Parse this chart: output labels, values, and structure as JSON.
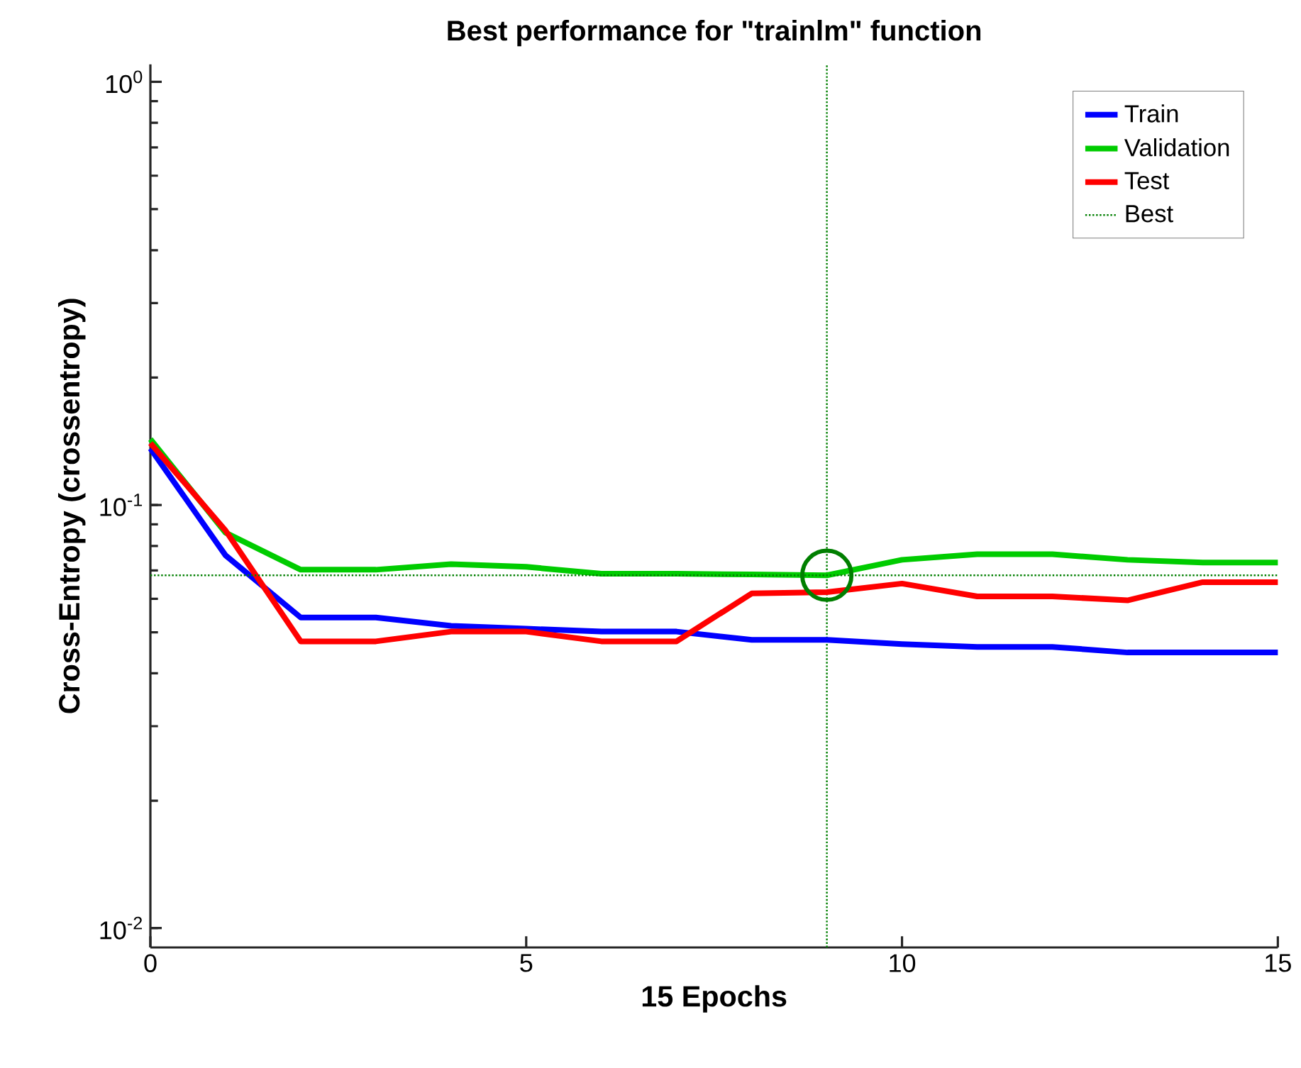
{
  "chart_data": {
    "type": "line",
    "title": "Best performance for \"trainlm\" function",
    "xlabel": "15 Epochs",
    "ylabel": "Cross-Entropy  (crossentropy)",
    "x": [
      0,
      1,
      2,
      3,
      4,
      5,
      6,
      7,
      8,
      9,
      10,
      11,
      12,
      13,
      14,
      15
    ],
    "series": [
      {
        "name": "Train",
        "color": "#0000ff",
        "values": [
          0.136,
          0.076,
          0.0542,
          0.0542,
          0.0518,
          0.051,
          0.0502,
          0.0502,
          0.048,
          0.048,
          0.0469,
          0.0462,
          0.0462,
          0.0448,
          0.0448,
          0.0448
        ]
      },
      {
        "name": "Validation",
        "color": "#00cc00",
        "values": [
          0.143,
          0.086,
          0.0703,
          0.0703,
          0.0725,
          0.0714,
          0.0688,
          0.0688,
          0.0685,
          0.0682,
          0.0742,
          0.0765,
          0.0765,
          0.0742,
          0.0731,
          0.0731
        ]
      },
      {
        "name": "Test",
        "color": "#ff0000",
        "values": [
          0.14,
          0.087,
          0.0476,
          0.0476,
          0.0502,
          0.0502,
          0.0476,
          0.0476,
          0.0618,
          0.0622,
          0.0652,
          0.0608,
          0.0608,
          0.0595,
          0.0657,
          0.0657
        ]
      },
      {
        "name": "Best",
        "color": "#007f00",
        "line_style": "dotted",
        "x": [
          0,
          15
        ],
        "values": [
          0.0682,
          0.0682
        ]
      },
      {
        "type": "scatter",
        "color": "#007f00",
        "marker": "circle",
        "x": [
          9
        ],
        "values": [
          0.0682
        ]
      }
    ],
    "ref_lines": [
      {
        "axis": "x",
        "value": 9,
        "color": "#007f00",
        "line_style": "dotted"
      }
    ],
    "log": "y",
    "xlim": [
      0,
      15
    ],
    "xticks": [
      0,
      5,
      10,
      15
    ],
    "ylim": [
      0.009,
      1.1
    ],
    "yticks": [
      {
        "value": 0.01,
        "label": "10$^{-2}$"
      },
      {
        "value": 0.1,
        "label": "10$^{-1}$"
      },
      {
        "value": 1,
        "label": "10$^{0}$"
      }
    ],
    "legend": "top right",
    "line_style": "solid",
    "marker": "none"
  }
}
